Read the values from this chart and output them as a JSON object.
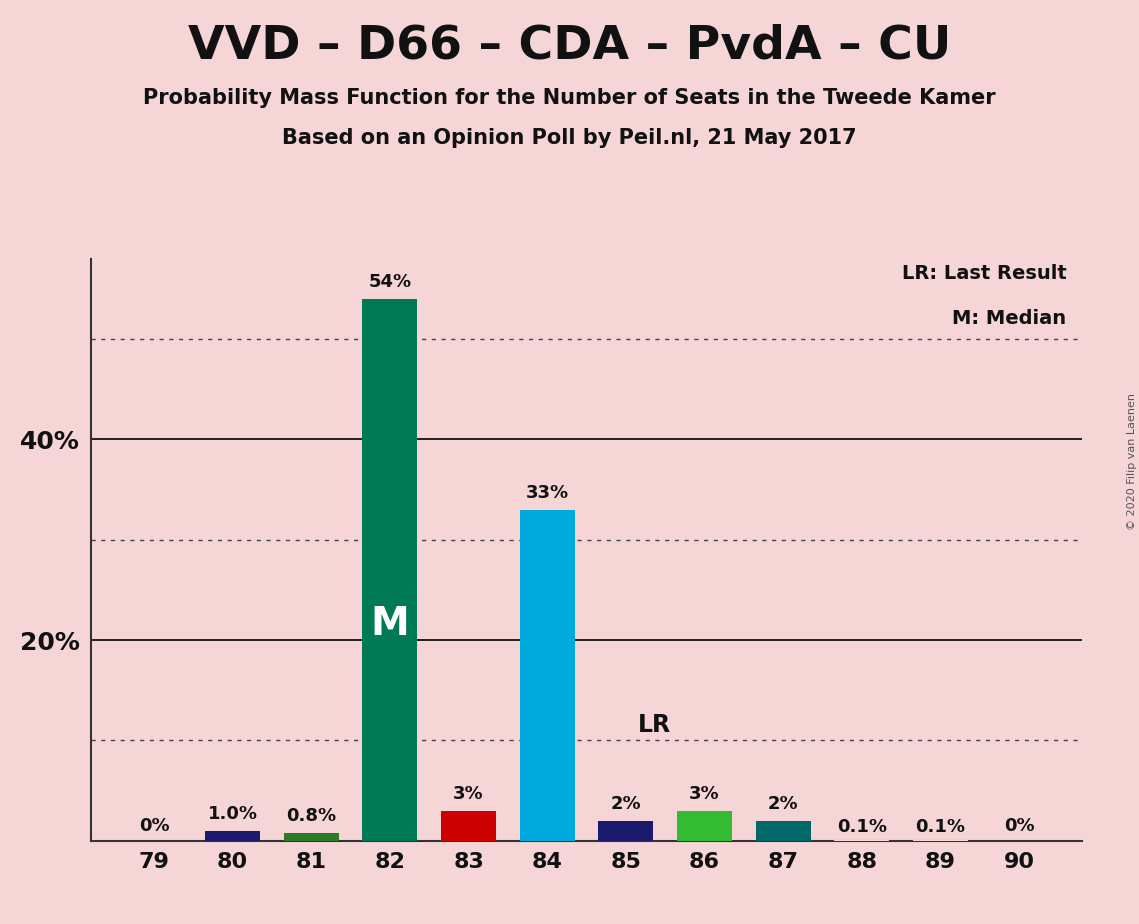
{
  "title": "VVD – D66 – CDA – PvdA – CU",
  "subtitle1": "Probability Mass Function for the Number of Seats in the Tweede Kamer",
  "subtitle2": "Based on an Opinion Poll by Peil.nl, 21 May 2017",
  "copyright": "© 2020 Filip van Laenen",
  "seats": [
    79,
    80,
    81,
    82,
    83,
    84,
    85,
    86,
    87,
    88,
    89,
    90
  ],
  "values": [
    0.0,
    1.0,
    0.8,
    54.0,
    3.0,
    33.0,
    2.0,
    3.0,
    2.0,
    0.1,
    0.1,
    0.0
  ],
  "bar_colors": [
    "#f5d5d5",
    "#1a1a6e",
    "#2a7a2a",
    "#007a55",
    "#cc0000",
    "#00aadd",
    "#1a1a6e",
    "#33bb33",
    "#006868",
    "#f5d5d5",
    "#f5d5d5",
    "#f5d5d5"
  ],
  "labels": [
    "0%",
    "1.0%",
    "0.8%",
    "54%",
    "3%",
    "33%",
    "2%",
    "3%",
    "2%",
    "0.1%",
    "0.1%",
    "0%"
  ],
  "show_label": [
    true,
    true,
    true,
    true,
    true,
    true,
    true,
    true,
    true,
    true,
    true,
    true
  ],
  "median_seat": 82,
  "last_result_seat": 85,
  "background_color": "#f5d5d5",
  "ylim": [
    0,
    58
  ],
  "legend_lr": "LR: Last Result",
  "legend_m": "M: Median",
  "dotted_lines": [
    10,
    30,
    50
  ],
  "solid_lines": [
    20,
    40
  ],
  "ytick_positions": [
    20,
    40
  ],
  "ytick_labels": [
    "20%",
    "40%"
  ],
  "bar_width": 0.7
}
